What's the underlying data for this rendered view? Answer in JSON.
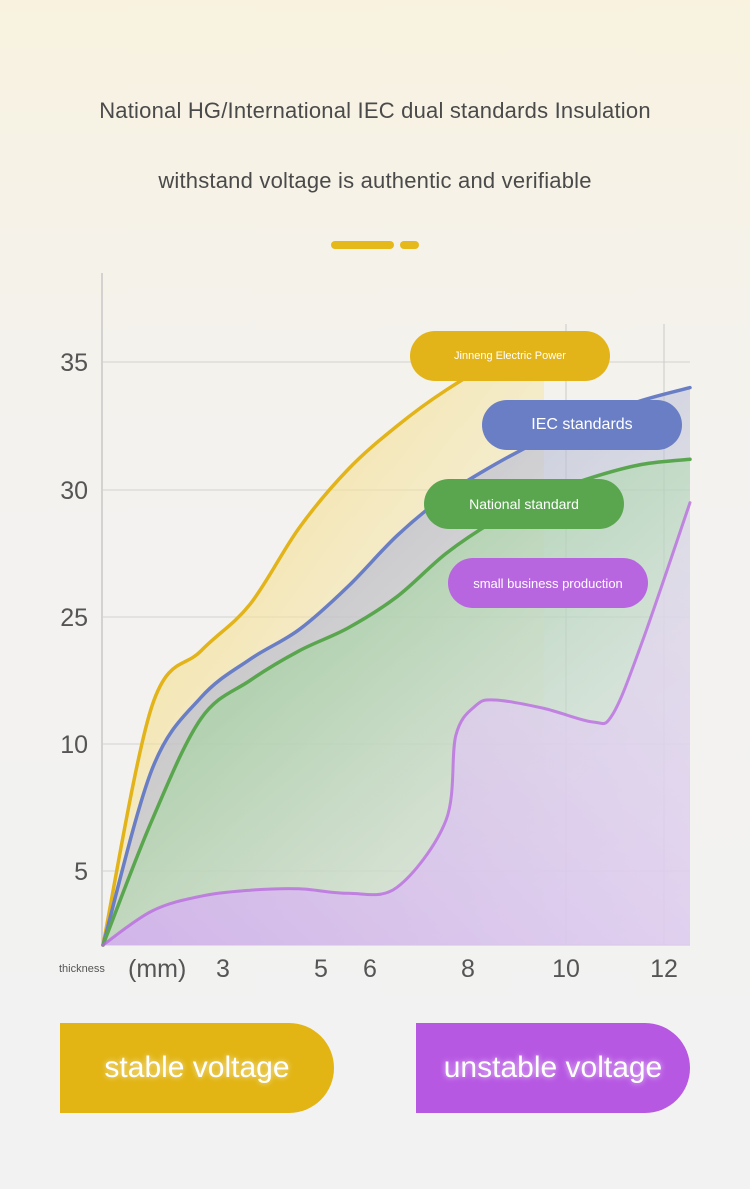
{
  "heading": {
    "line1": "National HG/International IEC dual standards Insulation",
    "line2": "withstand voltage is authentic and verifiable"
  },
  "chart_data": {
    "type": "area",
    "xlabel": "thickness",
    "xunit": "(mm)",
    "x_ticks": [
      "3",
      "5",
      "6",
      "8",
      "10",
      "12"
    ],
    "y_ticks": [
      "35",
      "30",
      "25",
      "10",
      "5"
    ],
    "grid": true,
    "series": [
      {
        "name": "Jinneng Electric Power",
        "color": "#e2b41a",
        "points": [
          [
            0,
            0
          ],
          [
            1,
            14.5
          ],
          [
            2,
            21
          ],
          [
            3,
            25.5
          ],
          [
            4,
            28.5
          ],
          [
            5,
            30.8
          ],
          [
            6,
            32.5
          ],
          [
            7,
            33.9
          ],
          [
            8,
            35
          ],
          [
            9,
            35.6
          ]
        ]
      },
      {
        "name": "IEC standards",
        "color": "#6a7ec6",
        "points": [
          [
            0,
            0
          ],
          [
            1,
            9
          ],
          [
            2,
            15.5
          ],
          [
            3,
            20
          ],
          [
            4,
            23.5
          ],
          [
            5,
            26.2
          ],
          [
            6,
            28.2
          ],
          [
            7,
            29.8
          ],
          [
            8,
            31
          ],
          [
            9,
            32
          ],
          [
            10,
            32.8
          ],
          [
            11,
            33.5
          ],
          [
            12,
            34
          ]
        ]
      },
      {
        "name": "National standard",
        "color": "#5aa64f",
        "points": [
          [
            0,
            0
          ],
          [
            1,
            7
          ],
          [
            2,
            13
          ],
          [
            3,
            17.5
          ],
          [
            4,
            21
          ],
          [
            5,
            23.7
          ],
          [
            6,
            25.8
          ],
          [
            7,
            27.5
          ],
          [
            8,
            28.8
          ],
          [
            9,
            29.8
          ],
          [
            10,
            30.5
          ],
          [
            11,
            31
          ],
          [
            12,
            31.2
          ]
        ]
      },
      {
        "name": "small business production",
        "color": "#b866e0",
        "points": [
          [
            0,
            0
          ],
          [
            1,
            2.3
          ],
          [
            2,
            3.3
          ],
          [
            3,
            3.7
          ],
          [
            4,
            3.8
          ],
          [
            5,
            3.5
          ],
          [
            6,
            3.9
          ],
          [
            7,
            7
          ],
          [
            7.2,
            11
          ],
          [
            7.6,
            14.5
          ],
          [
            8,
            15.2
          ],
          [
            9,
            14.2
          ],
          [
            10,
            12.6
          ],
          [
            10.4,
            13.5
          ],
          [
            11,
            22
          ],
          [
            12,
            29.5
          ]
        ]
      }
    ]
  },
  "legend_labels": {
    "jinneng": "Jinneng Electric Power",
    "iec": "IEC standards",
    "national": "National standard",
    "small": "small business production"
  },
  "buttons": {
    "stable": "stable voltage",
    "unstable": "unstable voltage"
  },
  "colors": {
    "gold": "#e2b41a",
    "blue": "#6a7ec6",
    "green": "#5aa64f",
    "purple": "#b866e0"
  }
}
